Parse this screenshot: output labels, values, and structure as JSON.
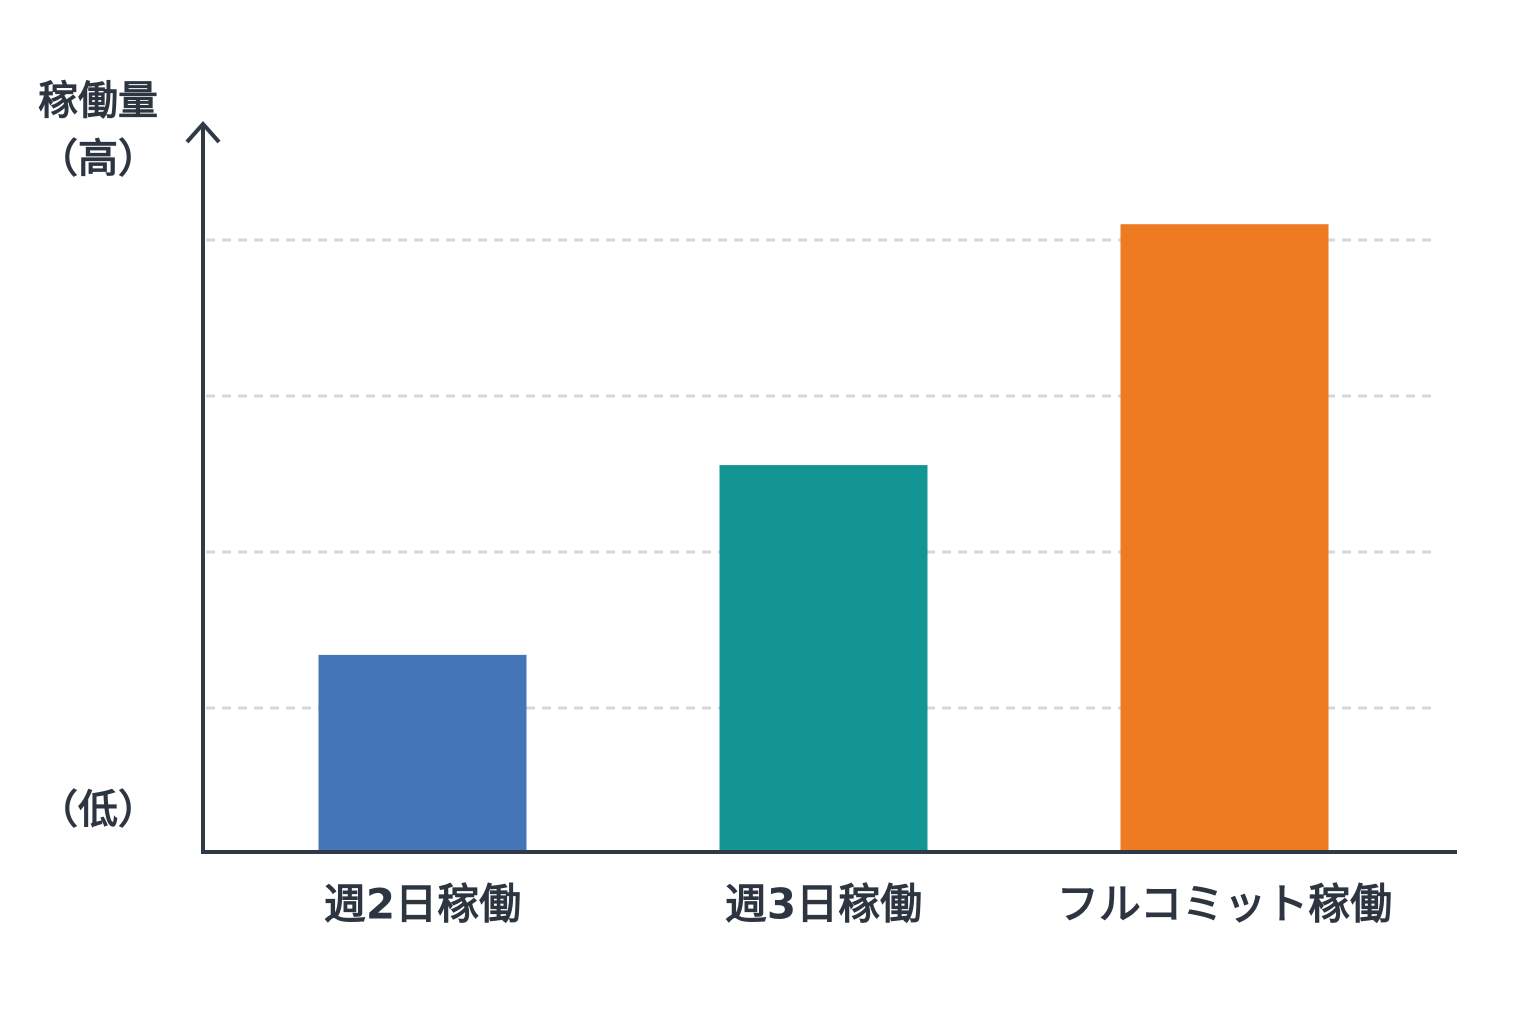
{
  "chart_data": {
    "type": "bar",
    "y_label": "稼働量",
    "y_high_label": "（高）",
    "y_low_label": "（低）",
    "categories": [
      "週2日稼働",
      "週3日稼働",
      "フルコミット稼働"
    ],
    "values": [
      27,
      53,
      86
    ],
    "colors": [
      "#4575b9",
      "#139594",
      "#ee7a22"
    ],
    "ylim": [
      0,
      100
    ],
    "grid": true
  }
}
